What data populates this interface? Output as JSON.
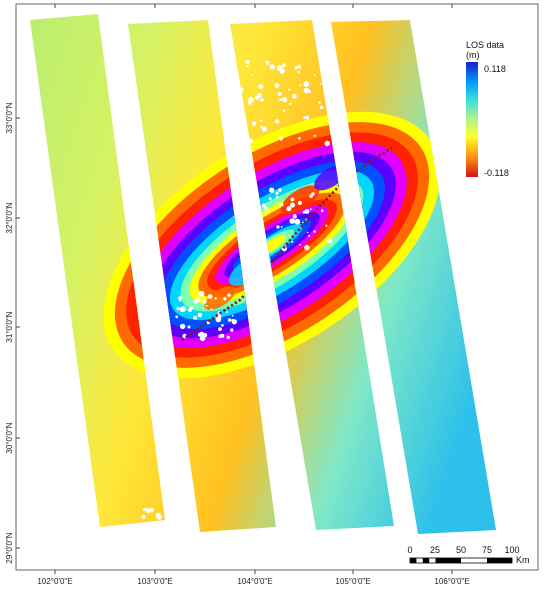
{
  "legend": {
    "title_line1": "LOS data",
    "title_line2": "(m)",
    "max_label": "0.118",
    "min_label": "-0.118",
    "colors": [
      "#1e1ec8",
      "#00b4ff",
      "#46e6d2",
      "#b4f08c",
      "#ffff28",
      "#ffa014",
      "#ff3c0a",
      "#d21414"
    ]
  },
  "axes": {
    "latitude_labels": [
      "33°0'0\"N",
      "32°0'0\"N",
      "31°0'0\"N",
      "30°0'0\"N",
      "29°0'0\"N"
    ],
    "longitude_labels": [
      "102°0'0\"E",
      "103°0'0\"E",
      "104°0'0\"E",
      "105°0'0\"E",
      "106°0'0\"E"
    ]
  },
  "scale_bar": {
    "ticks": [
      "0",
      "25",
      "50",
      "75",
      "100"
    ],
    "unit": "Km"
  },
  "palette": {
    "fringe": [
      "#ffff00",
      "#ff6a00",
      "#ff2200",
      "#e000ff",
      "#5a00ff",
      "#0050ff",
      "#00d6ff",
      "#7dffb0",
      "#ffff00"
    ],
    "far_field_west": "#9eeb80",
    "far_field_east": "#2ec8e6",
    "fault_trace": "#8b1a1a"
  }
}
